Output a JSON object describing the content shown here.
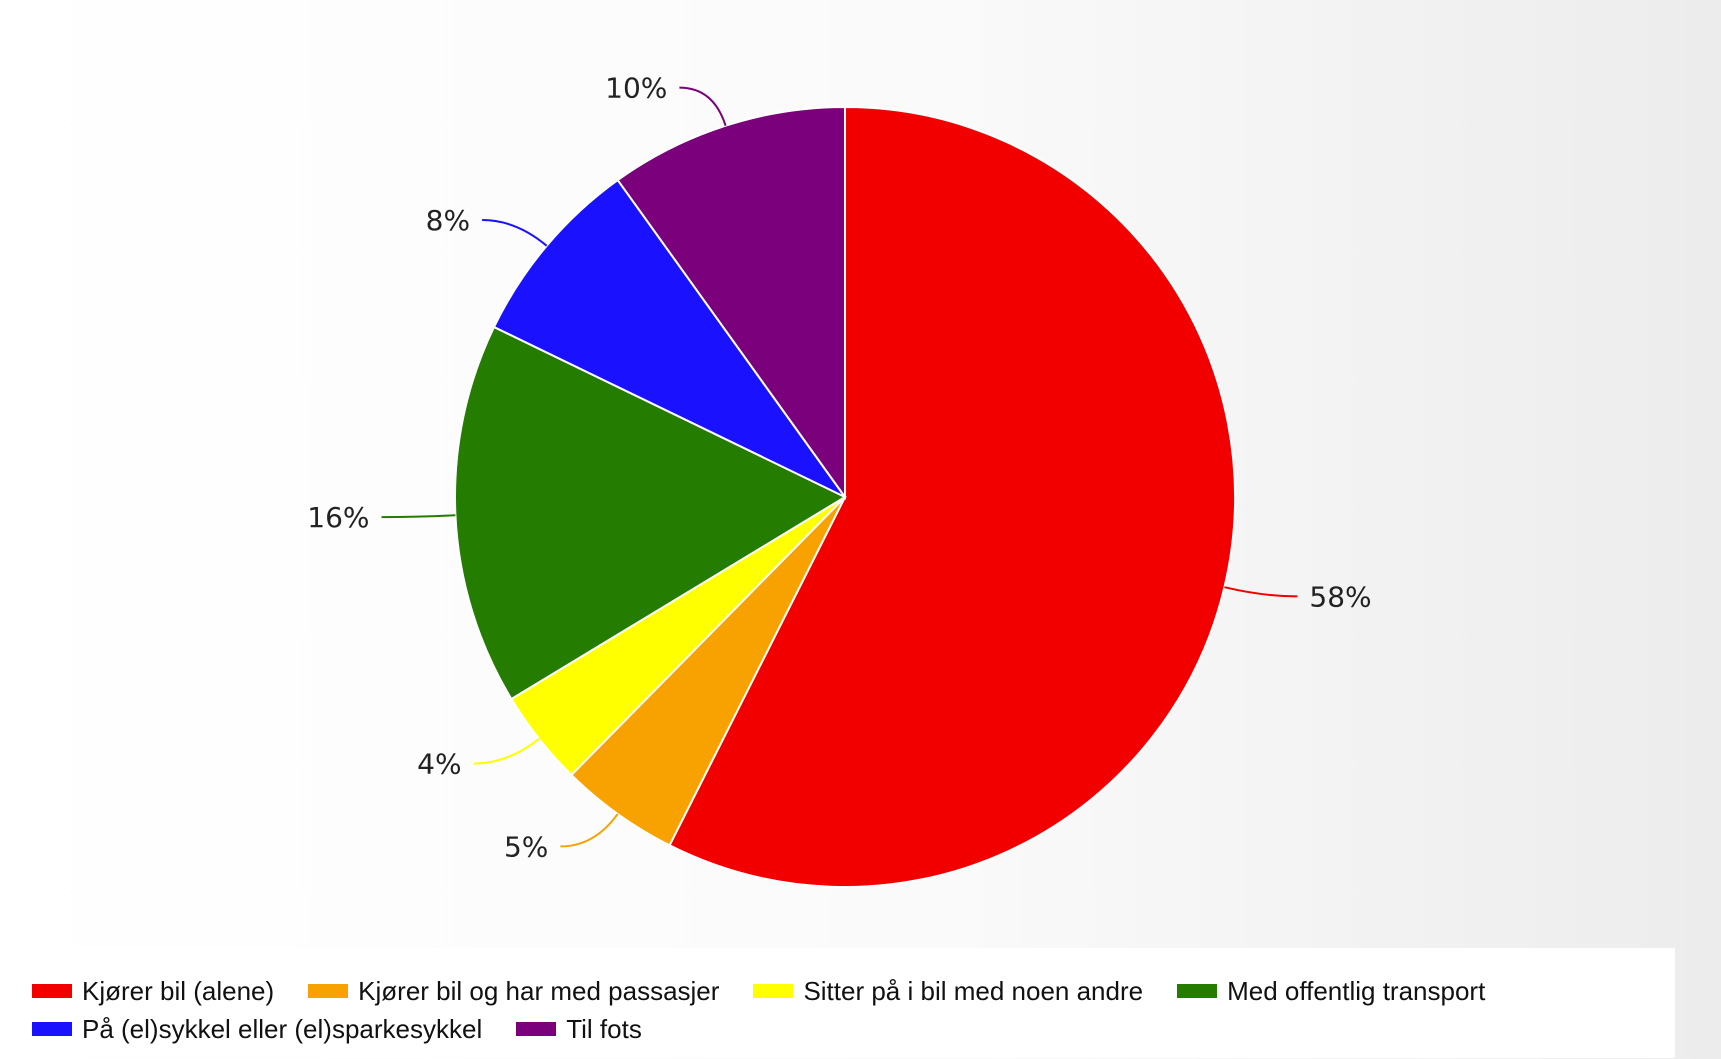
{
  "chart_data": {
    "type": "pie",
    "categories": [
      "Kjører bil (alene)",
      "Kjører bil og har med passasjer",
      "Sitter på i bil med noen andre",
      "Med offentlig transport",
      "På (el)sykkel eller (el)sparkesykkel",
      "Til fots"
    ],
    "values": [
      58,
      5,
      4,
      16,
      8,
      10
    ],
    "labels": [
      "58%",
      "5%",
      "4%",
      "16%",
      "8%",
      "10%"
    ],
    "colors": [
      "#f20000",
      "#f7a200",
      "#ffff00",
      "#247c00",
      "#1a12ff",
      "#7b007b"
    ],
    "legend_position": "bottom"
  }
}
